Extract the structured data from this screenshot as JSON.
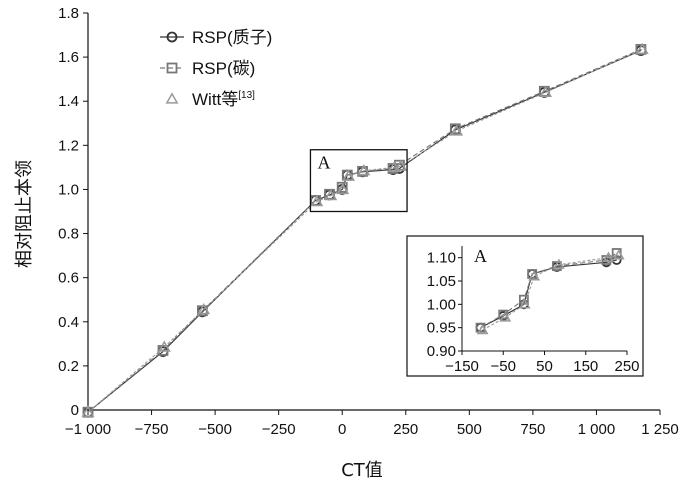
{
  "chart_data": {
    "type": "line",
    "title": "",
    "xlabel": "CT值",
    "ylabel": "相对阻止本领",
    "xlim": [
      -1000,
      1250
    ],
    "ylim": [
      0,
      1.8
    ],
    "x_ticks": [
      "−1 000",
      "−750",
      "−500",
      "−250",
      "0",
      "250",
      "500",
      "750",
      "1 000",
      "1 250"
    ],
    "y_ticks": [
      "0",
      "0.2",
      "0.4",
      "0.6",
      "0.8",
      "1.0",
      "1.2",
      "1.4",
      "1.6",
      "1.8"
    ],
    "grid": false,
    "legend_position": "top-left",
    "series": [
      {
        "name": "RSP(质子)",
        "marker": "circle",
        "color": "#333333",
        "x": [
          -1000,
          -705,
          -550,
          -105,
          -50,
          0,
          20,
          80,
          200,
          225,
          445,
          795,
          1175
        ],
        "y": [
          -0.01,
          0.265,
          0.445,
          0.95,
          0.975,
          1.0,
          1.065,
          1.08,
          1.09,
          1.095,
          1.27,
          1.44,
          1.63
        ]
      },
      {
        "name": "RSP(碳)",
        "marker": "square",
        "color": "#777777",
        "x": [
          -1000,
          -705,
          -550,
          -105,
          -50,
          0,
          20,
          80,
          200,
          225,
          445,
          795,
          1175
        ],
        "y": [
          -0.01,
          0.27,
          0.45,
          0.95,
          0.978,
          1.01,
          1.065,
          1.082,
          1.095,
          1.11,
          1.275,
          1.445,
          1.635
        ]
      },
      {
        "name": "Witt等",
        "name_sup": "[13]",
        "marker": "triangle",
        "color": "#999999",
        "x": [
          -1000,
          -700,
          -545,
          -100,
          -45,
          2,
          25,
          85,
          205,
          230,
          450,
          800,
          1180
        ],
        "y": [
          -0.01,
          0.285,
          0.455,
          0.945,
          0.972,
          1.0,
          1.06,
          1.085,
          1.1,
          1.105,
          1.265,
          1.44,
          1.635
        ]
      }
    ],
    "annotation_box": {
      "label": "A",
      "x_range": [
        -125,
        255
      ],
      "y_range": [
        0.9,
        1.18
      ]
    },
    "inset": {
      "label": "A",
      "xlim": [
        -150,
        250
      ],
      "ylim": [
        0.9,
        1.125
      ],
      "x_ticks": [
        "−150",
        "−50",
        "50",
        "150",
        "250"
      ],
      "y_ticks": [
        "0.90",
        "0.95",
        "1.00",
        "1.05",
        "1.10"
      ]
    }
  }
}
